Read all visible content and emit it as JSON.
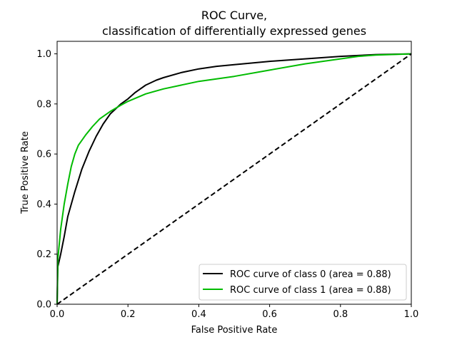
{
  "chart_data": {
    "type": "line",
    "title_line1": "ROC Curve,",
    "title_line2": "classification of differentially expressed genes",
    "xlabel": "False Positive Rate",
    "ylabel": "True Positive Rate",
    "xlim": [
      0.0,
      1.0
    ],
    "ylim": [
      0.0,
      1.05
    ],
    "xticks": [
      0.0,
      0.2,
      0.4,
      0.6,
      0.8,
      1.0
    ],
    "xtick_labels": [
      "0.0",
      "0.2",
      "0.4",
      "0.6",
      "0.8",
      "1.0"
    ],
    "yticks": [
      0.0,
      0.2,
      0.4,
      0.6,
      0.8,
      1.0
    ],
    "ytick_labels": [
      "0.0",
      "0.2",
      "0.4",
      "0.6",
      "0.8",
      "1.0"
    ],
    "grid": false,
    "legend_position": "lower-right",
    "series": [
      {
        "name": "ROC curve of class 0 (area = 0.88)",
        "color": "#000000",
        "x": [
          0.0,
          0.002,
          0.01,
          0.02,
          0.03,
          0.05,
          0.07,
          0.09,
          0.11,
          0.13,
          0.15,
          0.18,
          0.2,
          0.22,
          0.25,
          0.28,
          0.3,
          0.35,
          0.4,
          0.45,
          0.5,
          0.6,
          0.7,
          0.8,
          0.9,
          1.0
        ],
        "y": [
          0.0,
          0.15,
          0.2,
          0.27,
          0.35,
          0.45,
          0.54,
          0.61,
          0.67,
          0.72,
          0.76,
          0.8,
          0.82,
          0.845,
          0.875,
          0.895,
          0.905,
          0.925,
          0.94,
          0.95,
          0.957,
          0.97,
          0.98,
          0.99,
          0.997,
          1.0
        ]
      },
      {
        "name": "ROC curve of class 1 (area = 0.88)",
        "color": "#00bb00",
        "x": [
          0.0,
          0.002,
          0.01,
          0.02,
          0.03,
          0.04,
          0.05,
          0.06,
          0.08,
          0.1,
          0.12,
          0.15,
          0.18,
          0.2,
          0.25,
          0.3,
          0.35,
          0.4,
          0.45,
          0.5,
          0.6,
          0.7,
          0.8,
          0.85,
          0.9,
          1.0
        ],
        "y": [
          0.0,
          0.18,
          0.3,
          0.4,
          0.48,
          0.55,
          0.6,
          0.635,
          0.675,
          0.71,
          0.74,
          0.77,
          0.795,
          0.81,
          0.84,
          0.86,
          0.875,
          0.89,
          0.9,
          0.91,
          0.935,
          0.96,
          0.98,
          0.99,
          0.995,
          1.0
        ]
      },
      {
        "name": "",
        "color": "#000000",
        "dashed": true,
        "x": [
          0.0,
          1.0
        ],
        "y": [
          0.0,
          1.0
        ]
      }
    ]
  }
}
